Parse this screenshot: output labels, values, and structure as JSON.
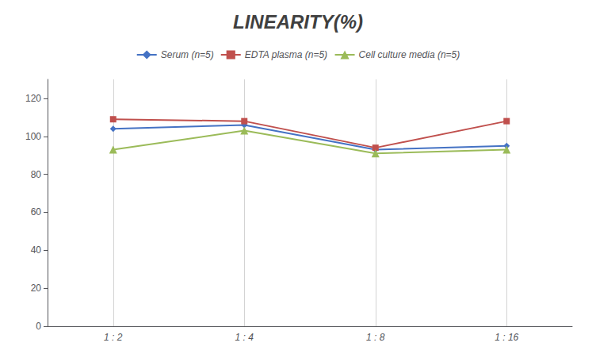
{
  "chart_data": {
    "type": "line",
    "title": "LINEARITY(%)",
    "categories": [
      "1 : 2",
      "1 : 4",
      "1 : 8",
      "1 : 16"
    ],
    "series": [
      {
        "name": "Serum (n=5)",
        "color": "#4472C4",
        "marker": "diamond",
        "values": [
          104,
          106,
          93,
          95
        ]
      },
      {
        "name": "EDTA plasma (n=5)",
        "color": "#C0504D",
        "marker": "square",
        "values": [
          109,
          108,
          94,
          108
        ]
      },
      {
        "name": "Cell culture media (n=5)",
        "color": "#9BBB59",
        "marker": "triangle",
        "values": [
          93,
          103,
          91,
          93
        ]
      }
    ],
    "ylim": [
      0,
      130
    ],
    "yticks": [
      0,
      20,
      40,
      60,
      80,
      100,
      120
    ],
    "grid": true,
    "legend": "top"
  }
}
